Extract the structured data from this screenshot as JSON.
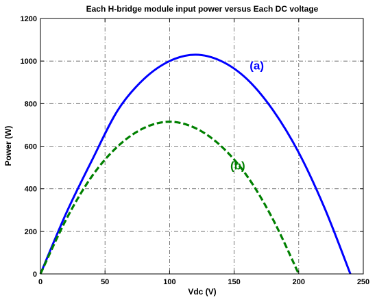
{
  "chart_data": {
    "type": "line",
    "title": "Each H-bridge module input power versus Each DC voltage",
    "xlabel": "Vdc (V)",
    "ylabel": "Power (W)",
    "xlim": [
      0,
      250
    ],
    "ylim": [
      0,
      1200
    ],
    "xticks": [
      0,
      50,
      100,
      150,
      200,
      250
    ],
    "yticks": [
      0,
      200,
      400,
      600,
      800,
      1000,
      1200
    ],
    "grid": true,
    "grid_style": "dash-dot",
    "series": [
      {
        "name": "(a)",
        "color": "#0000ff",
        "style": "solid",
        "x": [
          0,
          20,
          40,
          60,
          80,
          100,
          120,
          140,
          160,
          180,
          200,
          220,
          240
        ],
        "values": [
          0,
          286,
          535,
          770,
          915,
          1000,
          1030,
          1000,
          915,
          770,
          570,
          310,
          0
        ]
      },
      {
        "name": "(b)",
        "color": "#008000",
        "style": "dashed",
        "x": [
          0,
          20,
          40,
          60,
          80,
          100,
          120,
          140,
          160,
          180,
          200
        ],
        "values": [
          0,
          257,
          460,
          600,
          685,
          715,
          685,
          600,
          460,
          257,
          0
        ]
      }
    ],
    "annotations": [
      {
        "text": "(a)",
        "x": 162,
        "y": 960,
        "color": "#0000ff"
      },
      {
        "text": "(b)",
        "x": 147,
        "y": 490,
        "color": "#008000"
      }
    ]
  }
}
